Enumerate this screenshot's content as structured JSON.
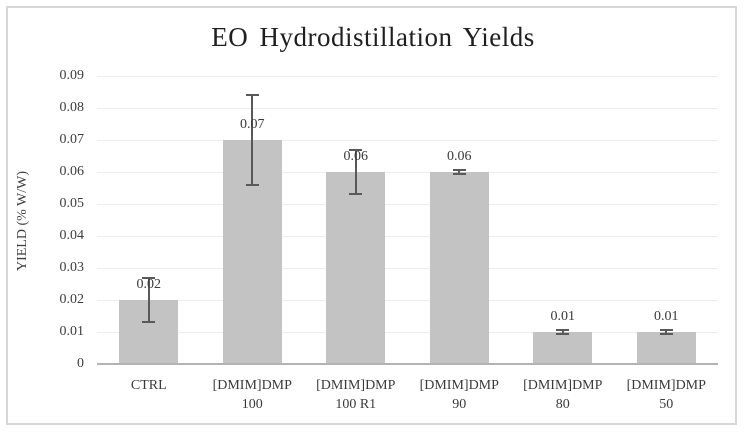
{
  "figure": {
    "background_color": "#ffffff",
    "border_color": "#d7d7d7"
  },
  "chart_data": {
    "type": "bar",
    "title": "EO Hydrodistillation Yields",
    "xlabel": "",
    "ylabel": "YIELD (% W/W)",
    "categories": [
      "CTRL",
      "[DMIM]DMP 100",
      "[DMIM]DMP 100 R1",
      "[DMIM]DMP 90",
      "[DMIM]DMP 80",
      "[DMIM]DMP 50"
    ],
    "category_lines": [
      [
        "CTRL"
      ],
      [
        "[DMIM]DMP",
        "100"
      ],
      [
        "[DMIM]DMP",
        "100 R1"
      ],
      [
        "[DMIM]DMP",
        "90"
      ],
      [
        "[DMIM]DMP",
        "80"
      ],
      [
        "[DMIM]DMP",
        "50"
      ]
    ],
    "values": [
      0.02,
      0.07,
      0.06,
      0.06,
      0.01,
      0.01
    ],
    "data_labels": [
      "0.02",
      "0.07",
      "0.06",
      "0.06",
      "0.01",
      "0.01"
    ],
    "error_bars": [
      0.007,
      0.014,
      0.007,
      0.0005,
      0.0005,
      0.0005
    ],
    "ylim": [
      0,
      0.09
    ],
    "ytick_step": 0.01,
    "yticks": [
      "0",
      "0.01",
      "0.02",
      "0.03",
      "0.04",
      "0.05",
      "0.06",
      "0.07",
      "0.08",
      "0.09"
    ],
    "grid": true,
    "legend_position": "none",
    "bar_color": "#c3c3c3",
    "error_bar_color": "#595959",
    "gridline_color": "#ececec",
    "axis_line_color": "#b3b3b3",
    "label_color": "#3a3a3a",
    "title_color": "#1f1f1f"
  }
}
